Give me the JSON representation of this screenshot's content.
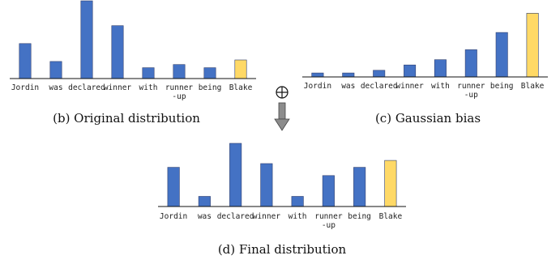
{
  "chart_data": [
    {
      "type": "bar",
      "caption": "(b) Original distribution",
      "categories": [
        "Jordin",
        "was",
        "declared",
        "winner",
        "with",
        "runner\n-up",
        "being",
        "Blake"
      ],
      "values": [
        0.45,
        0.22,
        1.0,
        0.68,
        0.14,
        0.18,
        0.14,
        0.24
      ],
      "highlight_index": 7,
      "colors": {
        "bar": "#4472C4",
        "highlight": "#FFD966",
        "edge": "#2F3F6F"
      }
    },
    {
      "type": "bar",
      "caption": "(c) Gaussian bias",
      "categories": [
        "Jordin",
        "was",
        "declared",
        "winner",
        "with",
        "runner\n-up",
        "being",
        "Blake"
      ],
      "values": [
        0.06,
        0.06,
        0.1,
        0.18,
        0.26,
        0.41,
        0.67,
        0.96
      ],
      "highlight_index": 7,
      "colors": {
        "bar": "#4472C4",
        "highlight": "#FFD966",
        "edge": "#2F3F6F"
      }
    },
    {
      "type": "bar",
      "caption": "(d) Final distribution",
      "categories": [
        "Jordin",
        "was",
        "declared",
        "winner",
        "with",
        "runner\n-up",
        "being",
        "Blake"
      ],
      "values": [
        0.62,
        0.16,
        1.0,
        0.68,
        0.16,
        0.49,
        0.62,
        0.73
      ],
      "highlight_index": 7,
      "colors": {
        "bar": "#4472C4",
        "highlight": "#FFD966",
        "edge": "#2F3F6F"
      }
    }
  ],
  "operator": {
    "symbol": "⊕",
    "arrow": "down-arrow-icon"
  }
}
